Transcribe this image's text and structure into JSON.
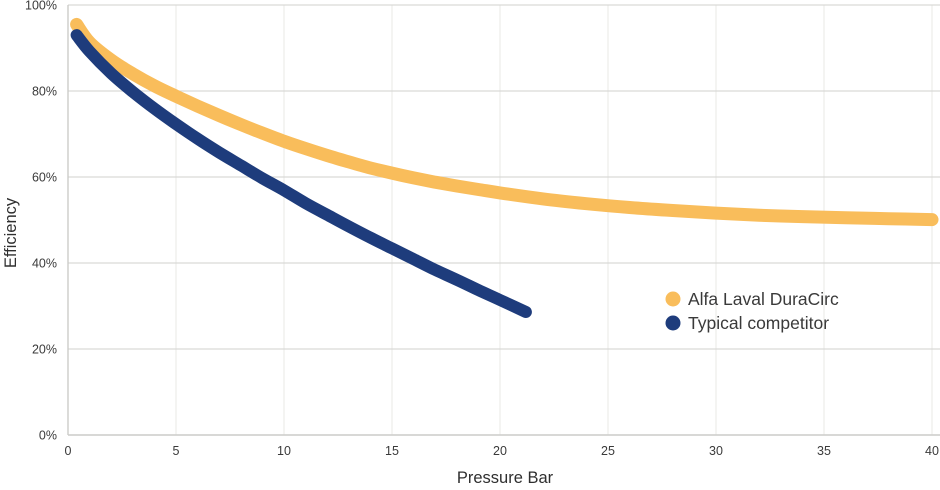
{
  "chart_data": {
    "type": "line",
    "title": "",
    "xlabel": "Pressure Bar",
    "ylabel": "Efficiency",
    "xlim": [
      0,
      40
    ],
    "ylim": [
      0,
      100
    ],
    "x_ticks": [
      0,
      5,
      10,
      15,
      20,
      25,
      30,
      35,
      40
    ],
    "y_ticks": [
      {
        "value": 0,
        "label": "0%"
      },
      {
        "value": 20,
        "label": "20%"
      },
      {
        "value": 40,
        "label": "40%"
      },
      {
        "value": 60,
        "label": "60%"
      },
      {
        "value": 80,
        "label": "80%"
      },
      {
        "value": 100,
        "label": "100%"
      }
    ],
    "grid": true,
    "legend_position": "inside-right",
    "series": [
      {
        "name": "Alfa Laval DuraCirc",
        "color": "#F9BD5B",
        "stroke_width": 13,
        "points": [
          [
            0.4,
            95.5
          ],
          [
            1,
            91.3
          ],
          [
            2,
            87.2
          ],
          [
            3,
            84.0
          ],
          [
            4,
            81.2
          ],
          [
            5,
            78.8
          ],
          [
            6,
            76.5
          ],
          [
            7,
            74.3
          ],
          [
            8,
            72.2
          ],
          [
            9,
            70.2
          ],
          [
            10,
            68.3
          ],
          [
            11,
            66.6
          ],
          [
            12,
            65.0
          ],
          [
            13,
            63.5
          ],
          [
            14,
            62.1
          ],
          [
            15,
            60.9
          ],
          [
            16,
            59.8
          ],
          [
            17,
            58.8
          ],
          [
            18,
            57.9
          ],
          [
            19,
            57.1
          ],
          [
            20,
            56.3
          ],
          [
            22,
            54.9
          ],
          [
            24,
            53.8
          ],
          [
            26,
            52.9
          ],
          [
            28,
            52.2
          ],
          [
            30,
            51.6
          ],
          [
            32,
            51.1
          ],
          [
            34,
            50.8
          ],
          [
            36,
            50.5
          ],
          [
            38,
            50.3
          ],
          [
            40,
            50.1
          ]
        ]
      },
      {
        "name": "Typical competitor",
        "color": "#1E3C7C",
        "stroke_width": 12,
        "points": [
          [
            0.4,
            93.0
          ],
          [
            1,
            89.2
          ],
          [
            2,
            84.1
          ],
          [
            3,
            79.8
          ],
          [
            4,
            75.9
          ],
          [
            5,
            72.3
          ],
          [
            6,
            68.9
          ],
          [
            7,
            65.7
          ],
          [
            8,
            62.7
          ],
          [
            9,
            59.7
          ],
          [
            10,
            56.9
          ],
          [
            11,
            53.9
          ],
          [
            12,
            51.2
          ],
          [
            13,
            48.5
          ],
          [
            14,
            45.9
          ],
          [
            15,
            43.4
          ],
          [
            16,
            40.9
          ],
          [
            17,
            38.4
          ],
          [
            18,
            36.1
          ],
          [
            19,
            33.7
          ],
          [
            20,
            31.4
          ],
          [
            21.2,
            28.6
          ]
        ]
      }
    ]
  },
  "colors": {
    "grid_horizontal": "#d9d9d6",
    "grid_vertical": "#e9e9e6",
    "axis": "#ccccc9",
    "text": "#3a3a3a",
    "background": "#ffffff"
  }
}
